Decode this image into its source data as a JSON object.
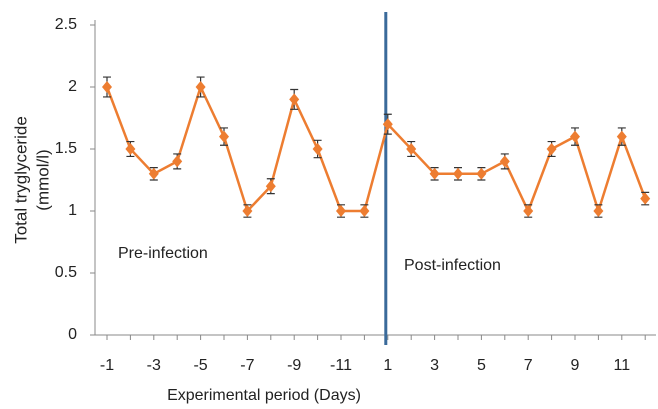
{
  "chart_data": {
    "type": "line",
    "xlabel": "Experimental period (Days)",
    "ylabel": [
      "Total tryglyceride",
      "(mmol/l)"
    ],
    "annotations": [
      "Pre-infection",
      "Post-infection"
    ],
    "categories": [
      "-1",
      null,
      "-3",
      null,
      "-5",
      null,
      "-7",
      null,
      "-9",
      null,
      "-11",
      null,
      "1",
      null,
      "3",
      null,
      "5",
      null,
      "7",
      null,
      "9",
      null,
      "11",
      null
    ],
    "series": [
      {
        "name": "Total tryglyceride",
        "color": "#ed7d31",
        "values": [
          2.0,
          1.5,
          1.3,
          1.4,
          2.0,
          1.6,
          1.0,
          1.2,
          1.9,
          1.5,
          1.0,
          1.0,
          1.7,
          1.5,
          1.3,
          1.3,
          1.3,
          1.4,
          1.0,
          1.5,
          1.6,
          1.0,
          1.6,
          1.1
        ],
        "errors": [
          0.08,
          0.06,
          0.05,
          0.06,
          0.08,
          0.07,
          0.05,
          0.06,
          0.08,
          0.07,
          0.05,
          0.05,
          0.08,
          0.06,
          0.05,
          0.05,
          0.05,
          0.06,
          0.05,
          0.06,
          0.07,
          0.05,
          0.07,
          0.05
        ]
      }
    ],
    "divider_color": "#3a6a9a",
    "ylim": [
      0,
      2.5
    ],
    "yticks": [
      0,
      0.5,
      1,
      1.5,
      2,
      2.5
    ],
    "grid": false
  }
}
